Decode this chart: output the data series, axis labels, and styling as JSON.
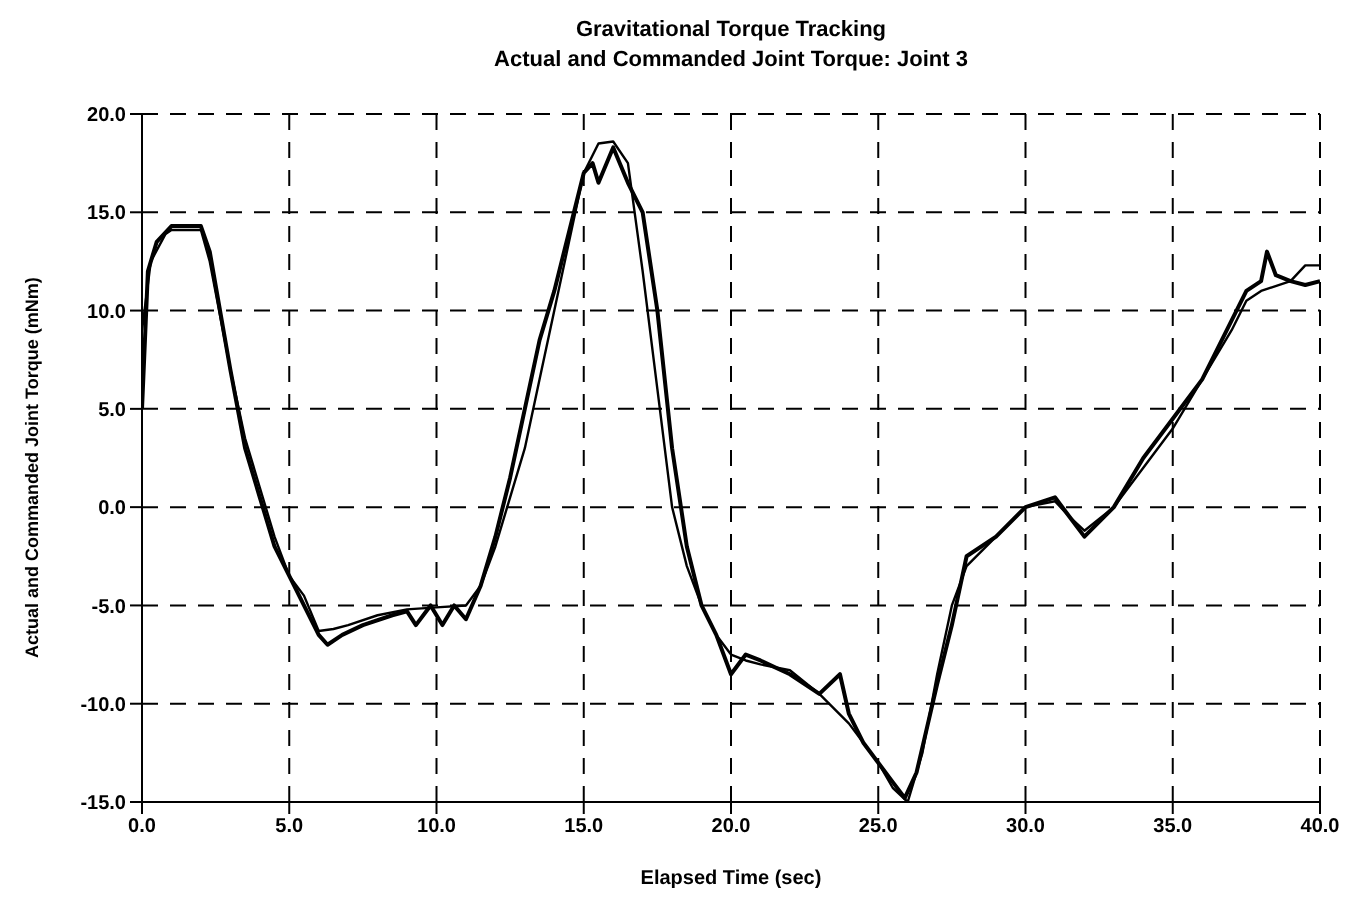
{
  "chart_data": {
    "type": "line",
    "title": "Gravitational Torque Tracking",
    "subtitle": "Actual and Commanded Joint Torque:  Joint 3",
    "xlabel": "Elapsed Time (sec)",
    "ylabel": "Actual and Commanded Joint Torque (mNm)",
    "xlim": [
      0,
      40
    ],
    "xticks": [
      {
        "value": 0,
        "label": "0.0"
      },
      {
        "value": 5,
        "label": "5.0"
      },
      {
        "value": 10,
        "label": "10.0"
      },
      {
        "value": 15,
        "label": "15.0"
      },
      {
        "value": 20,
        "label": "20.0"
      },
      {
        "value": 25,
        "label": "25.0"
      },
      {
        "value": 30,
        "label": "30.0"
      },
      {
        "value": 35,
        "label": "35.0"
      },
      {
        "value": 40,
        "label": "40.0"
      }
    ],
    "ylim": [
      -15,
      20
    ],
    "yticks": [
      {
        "value": -15,
        "label": "-15.0"
      },
      {
        "value": -10,
        "label": "-10.0"
      },
      {
        "value": -5,
        "label": "-5.0"
      },
      {
        "value": 0,
        "label": "0.0"
      },
      {
        "value": 5,
        "label": "5.0"
      },
      {
        "value": 10,
        "label": "10.0"
      },
      {
        "value": 15,
        "label": "15.0"
      },
      {
        "value": 20,
        "label": "20.0"
      }
    ],
    "grid": true,
    "legend": false,
    "marker": "none",
    "line_style": "solid",
    "series": [
      {
        "color": "#000000",
        "x": [
          0,
          0.3,
          0.8,
          1,
          2,
          2.3,
          3,
          3.5,
          4,
          4.5,
          5,
          5.5,
          6,
          6.5,
          7,
          8,
          9,
          10,
          11,
          11.5,
          12,
          12.5,
          13,
          13.5,
          14,
          14.5,
          15,
          15.5,
          16,
          16.5,
          17,
          17.5,
          18,
          18.5,
          19,
          19.5,
          20,
          20.5,
          21,
          22,
          23,
          24,
          25,
          25.5,
          26,
          26.5,
          27,
          27.5,
          28,
          29,
          30,
          31,
          31.5,
          32,
          33,
          34,
          35,
          36,
          37,
          37.5,
          38,
          39,
          39.5,
          40
        ],
        "values": [
          9,
          12.5,
          13.9,
          14.1,
          14.1,
          12.5,
          7,
          3.5,
          1,
          -1.5,
          -3.5,
          -4.5,
          -6.3,
          -6.2,
          -6,
          -5.5,
          -5.2,
          -5.1,
          -5,
          -4,
          -2,
          0.5,
          3,
          6.5,
          10,
          13.5,
          17,
          18.5,
          18.6,
          17.5,
          12,
          6,
          0,
          -3,
          -5,
          -6.5,
          -7.5,
          -7.8,
          -8,
          -8.3,
          -9.5,
          -11,
          -13,
          -14.3,
          -15,
          -12.5,
          -8.5,
          -5,
          -3,
          -1.5,
          0,
          0.3,
          -0.5,
          -1.2,
          0,
          2,
          4,
          6.5,
          9,
          10.5,
          11,
          11.5,
          12.3,
          12.3
        ]
      },
      {
        "color": "#000000",
        "x": [
          0,
          0.2,
          0.5,
          1,
          2,
          2.3,
          3,
          3.5,
          4,
          4.5,
          5,
          5.5,
          6,
          6.3,
          6.8,
          7.5,
          8.5,
          9,
          9.3,
          9.8,
          10.2,
          10.6,
          11,
          11.5,
          12,
          12.5,
          13,
          13.5,
          14,
          14.5,
          15,
          15.3,
          15.5,
          16,
          16.5,
          17,
          17.5,
          18,
          18.5,
          19,
          19.5,
          20,
          20.5,
          21,
          22,
          23,
          23.7,
          24,
          24.5,
          25,
          25.5,
          25.9,
          26.3,
          27,
          27.5,
          28,
          29,
          30,
          31,
          31.5,
          32,
          33,
          34,
          35,
          36,
          37,
          37.5,
          38,
          38.2,
          38.5,
          39,
          39.5,
          40
        ],
        "values": [
          5,
          12,
          13.5,
          14.3,
          14.3,
          13,
          7,
          3,
          0.5,
          -2,
          -3.5,
          -5,
          -6.5,
          -7,
          -6.5,
          -6,
          -5.5,
          -5.3,
          -6,
          -5,
          -6,
          -5,
          -5.7,
          -4,
          -1.5,
          1.5,
          5,
          8.5,
          11,
          14,
          17,
          17.5,
          16.5,
          18.3,
          16.5,
          15,
          10,
          3,
          -2,
          -5,
          -6.5,
          -8.5,
          -7.5,
          -7.8,
          -8.5,
          -9.5,
          -8.5,
          -10.5,
          -12,
          -13,
          -14,
          -14.8,
          -13.5,
          -9,
          -6,
          -2.5,
          -1.5,
          0,
          0.5,
          -0.5,
          -1.5,
          0,
          2.5,
          4.5,
          6.5,
          9.5,
          11,
          11.5,
          13,
          11.8,
          11.5,
          11.3,
          11.5
        ]
      }
    ]
  }
}
